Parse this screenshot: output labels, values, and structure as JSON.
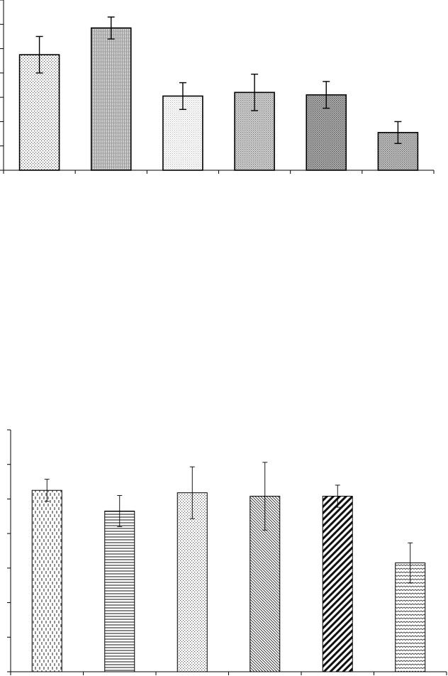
{
  "chart_data": [
    {
      "type": "bar",
      "categories": [
        "",
        "",
        "",
        "",
        "",
        ""
      ],
      "values": [
        4.75,
        5.85,
        3.05,
        3.2,
        3.1,
        1.55
      ],
      "errors": [
        0.75,
        0.45,
        0.55,
        0.75,
        0.55,
        0.45
      ],
      "ylim": [
        0,
        7
      ],
      "yticks": [
        0,
        1,
        2,
        3,
        4,
        5,
        6,
        7
      ],
      "patterns": [
        "dots-sparse",
        "hlines-fine",
        "dots-light",
        "dots-medium",
        "dots-dense",
        "dots-medium-dark"
      ],
      "grid": false,
      "title": "",
      "xlabel": "",
      "ylabel": ""
    },
    {
      "type": "bar",
      "categories": [
        "",
        "",
        "",
        "",
        "",
        ""
      ],
      "values": [
        5.25,
        4.65,
        5.18,
        5.08,
        5.08,
        3.15
      ],
      "errors": [
        0.32,
        0.45,
        0.75,
        0.98,
        0.32,
        0.58
      ],
      "ylim": [
        0,
        7
      ],
      "yticks": [
        0,
        1,
        2,
        3,
        4,
        5,
        6,
        7
      ],
      "patterns": [
        "dashed-vertical",
        "hlines",
        "dots-sparse",
        "diagonal-fine",
        "diagonal-bold",
        "wave"
      ],
      "grid": false,
      "title": "",
      "xlabel": "",
      "ylabel": ""
    }
  ]
}
